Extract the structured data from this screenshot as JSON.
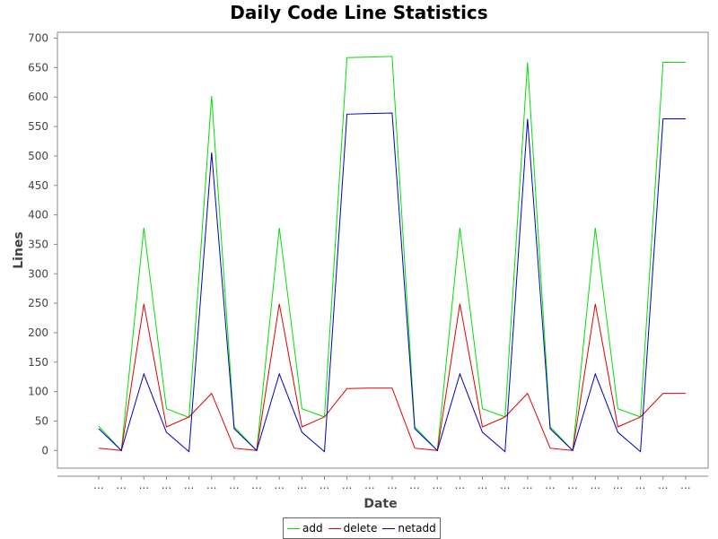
{
  "chart_data": {
    "type": "line",
    "title": "Daily Code Line Statistics",
    "xlabel": "Date",
    "ylabel": "Lines",
    "ylim": [
      -30,
      710
    ],
    "yticks": [
      0,
      50,
      100,
      150,
      200,
      250,
      300,
      350,
      400,
      450,
      500,
      550,
      600,
      650,
      700
    ],
    "categories": [
      "...",
      "...",
      "...",
      "...",
      "...",
      "...",
      "...",
      "...",
      "...",
      "...",
      "...",
      "...",
      "...",
      "...",
      "...",
      "...",
      "...",
      "...",
      "...",
      "...",
      "...",
      "...",
      "...",
      "...",
      "...",
      "...",
      "..."
    ],
    "grid": false,
    "legend_position": "bottom-center",
    "series": [
      {
        "name": "add",
        "color": "#00e000",
        "values": [
          41,
          0,
          378,
          71,
          56,
          602,
          40,
          0,
          378,
          71,
          57,
          667,
          668,
          669,
          40,
          0,
          378,
          71,
          57,
          659,
          40,
          0,
          378,
          71,
          57,
          659,
          659
        ]
      },
      {
        "name": "delete",
        "color": "#e00000",
        "values": [
          4,
          0,
          249,
          40,
          57,
          97,
          4,
          0,
          249,
          40,
          57,
          105,
          106,
          106,
          4,
          0,
          249,
          40,
          57,
          97,
          4,
          0,
          249,
          40,
          57,
          97,
          97
        ]
      },
      {
        "name": "netadd",
        "color": "#0000c0",
        "values": [
          37,
          0,
          130,
          31,
          -2,
          506,
          37,
          0,
          130,
          31,
          -2,
          571,
          572,
          573,
          37,
          0,
          130,
          31,
          -2,
          563,
          37,
          0,
          130,
          31,
          -2,
          563,
          563
        ]
      }
    ]
  }
}
